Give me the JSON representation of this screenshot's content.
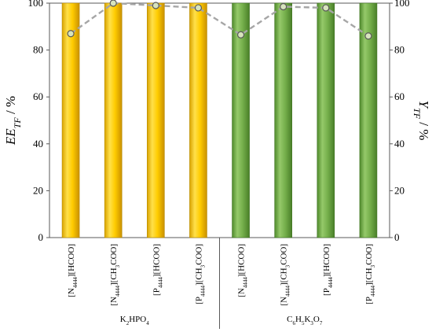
{
  "chart_data": {
    "type": "bar",
    "categories": [
      {
        "main": "[N",
        "sub": "4444",
        "rest": "][HCOO]"
      },
      {
        "main": "[N",
        "sub": "4444",
        "rest": "][CH",
        "sub2": "3",
        "rest2": "COO]"
      },
      {
        "main": "[P",
        "sub": "4444",
        "rest": "][HCOO]"
      },
      {
        "main": "[P",
        "sub": "4444",
        "rest": "][CH",
        "sub2": "3",
        "rest2": "COO]"
      },
      {
        "main": "[N",
        "sub": "4444",
        "rest": "][HCOO]"
      },
      {
        "main": "[N",
        "sub": "4444",
        "rest": "][CH",
        "sub2": "3",
        "rest2": "COO]"
      },
      {
        "main": "[P",
        "sub": "4444",
        "rest": "][HCOO]"
      },
      {
        "main": "[P",
        "sub": "4444",
        "rest": "][CH",
        "sub2": "3",
        "rest2": "COO]"
      }
    ],
    "series": [
      {
        "kind": "bar",
        "values": [
          100,
          100,
          100,
          100,
          100,
          100,
          100,
          100
        ]
      },
      {
        "kind": "line",
        "values": [
          87,
          100,
          99,
          98,
          86.5,
          98.5,
          98,
          86
        ]
      }
    ],
    "bar_colors": [
      "#f5c400",
      "#f5c400",
      "#f5c400",
      "#f5c400",
      "#6fa84a",
      "#6fa84a",
      "#6fa84a",
      "#6fa84a"
    ],
    "line_color": "#a6a6a6",
    "groups": [
      {
        "label_parts": [
          [
            "K",
            ""
          ],
          [
            "2",
            "sub"
          ],
          [
            "HPO",
            ""
          ],
          [
            "4",
            "sub"
          ]
        ],
        "start": 0,
        "end": 3
      },
      {
        "label_parts": [
          [
            "C",
            ""
          ],
          [
            "6",
            "sub"
          ],
          [
            "H",
            ""
          ],
          [
            "5",
            "sub"
          ],
          [
            "K",
            ""
          ],
          [
            "3",
            "sub"
          ],
          [
            "O",
            ""
          ],
          [
            "7",
            "sub"
          ]
        ],
        "start": 4,
        "end": 7
      }
    ],
    "y_left": {
      "label_main": "EE",
      "label_sub": "TF",
      "label_unit": " / %",
      "min": 0,
      "max": 100,
      "ticks": [
        "0",
        "20",
        "40",
        "60",
        "80",
        "100"
      ]
    },
    "y_right": {
      "label_main": "Y",
      "label_sub": "TF",
      "label_unit": " / %",
      "min": 0,
      "max": 100,
      "ticks": [
        "0",
        "20",
        "40",
        "60",
        "80",
        "100"
      ]
    },
    "grid": false,
    "legend": "none"
  }
}
